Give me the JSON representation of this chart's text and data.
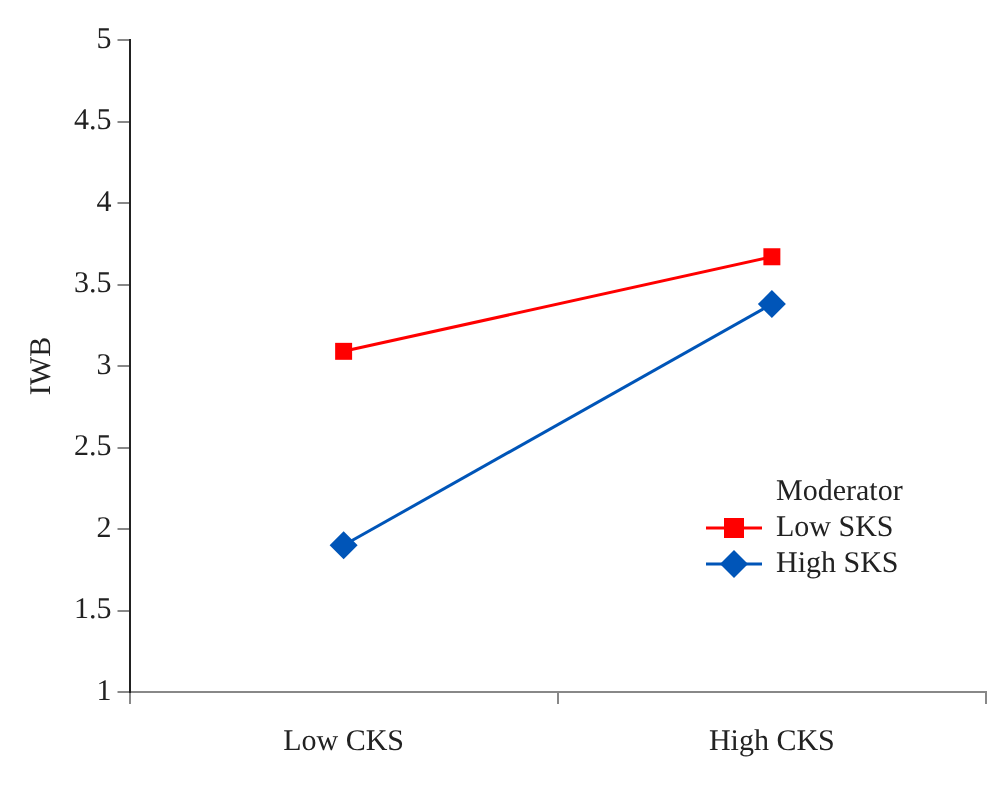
{
  "chart_data": {
    "type": "line",
    "ylabel": "IWB",
    "legend_title": "Moderator",
    "categories": [
      "Low CKS",
      "High CKS"
    ],
    "series": [
      {
        "name": "Low SKS",
        "color": "#ff0000",
        "values": [
          3.09,
          3.67
        ],
        "marker": "square"
      },
      {
        "name": "High SKS",
        "color": "#0055b8",
        "values": [
          1.9,
          3.38
        ],
        "marker": "diamond"
      }
    ],
    "ylim": [
      1,
      5
    ],
    "yticks": [
      1,
      1.5,
      2,
      2.5,
      3,
      3.5,
      4,
      4.5,
      5
    ],
    "grid": false,
    "legend": "bottom right",
    "line_style": "solid"
  }
}
